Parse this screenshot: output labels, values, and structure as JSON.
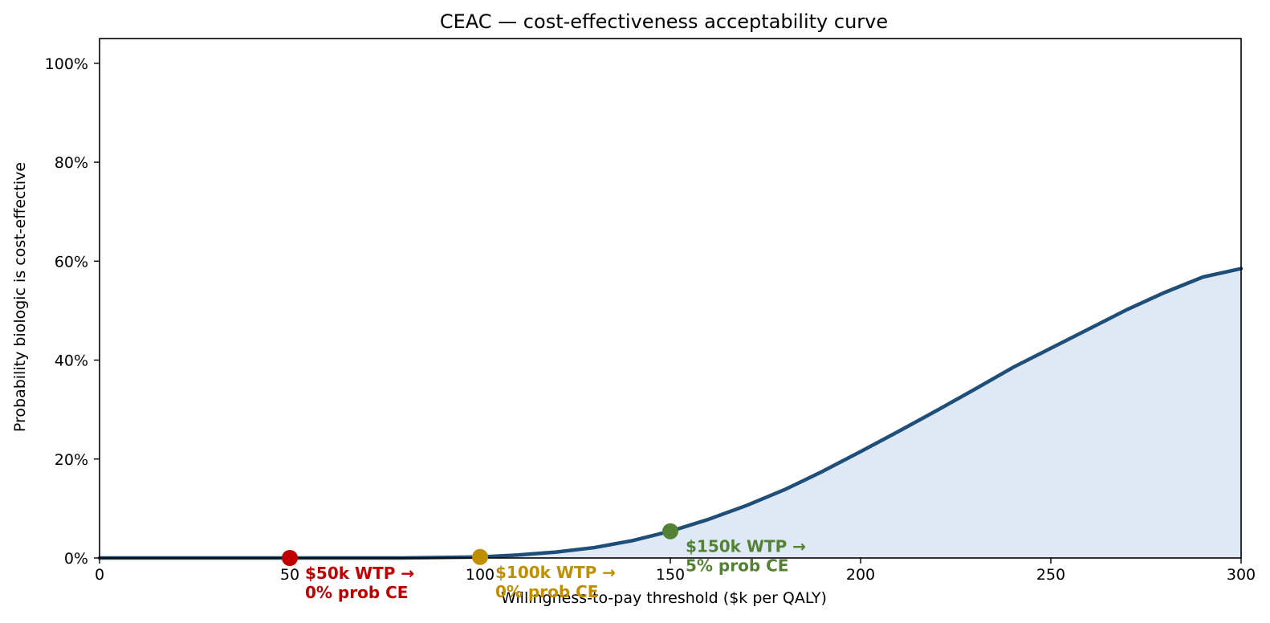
{
  "chart_data": {
    "type": "area",
    "title": "CEAC — cost-effectiveness acceptability curve",
    "xlabel": "Willingness-to-pay threshold  ($k per QALY)",
    "ylabel": "Probability biologic is cost-effective",
    "xlim": [
      0,
      300
    ],
    "ylim": [
      0,
      1.05
    ],
    "xticks": [
      0,
      50,
      100,
      150,
      200,
      250,
      300
    ],
    "yticks": [
      0,
      0.2,
      0.4,
      0.6,
      0.8,
      1.0
    ],
    "xtick_labels": [
      "0",
      "50",
      "100",
      "150",
      "200",
      "250",
      "300"
    ],
    "ytick_labels": [
      "0%",
      "20%",
      "40%",
      "60%",
      "80%",
      "100%"
    ],
    "grid": false,
    "legend": "none",
    "colors": {
      "line": "#1f4e79",
      "fill": "#dfe9f5",
      "marker_50": "#c00000",
      "marker_100": "#bf8f00",
      "marker_150": "#548235"
    },
    "series": [
      {
        "x": [
          0,
          10,
          20,
          30,
          40,
          50,
          60,
          70,
          80,
          90,
          100,
          110,
          120,
          130,
          140,
          150,
          160,
          170,
          180,
          190,
          200,
          210,
          220,
          230,
          240,
          250,
          260,
          270,
          280,
          290,
          300
        ],
        "y": [
          0,
          0,
          0,
          0,
          0,
          0,
          0,
          0,
          0,
          0.001,
          0.002,
          0.006,
          0.012,
          0.021,
          0.035,
          0.054,
          0.078,
          0.106,
          0.138,
          0.175,
          0.215,
          0.256,
          0.298,
          0.341,
          0.385,
          0.424,
          0.463,
          0.502,
          0.537,
          0.568,
          0.585
        ]
      }
    ],
    "markers": [
      {
        "x": 50,
        "y": 0.0,
        "color": "#c00000",
        "label_line1": "$50k WTP →",
        "label_line2": "0% prob CE"
      },
      {
        "x": 100,
        "y": 0.002,
        "color": "#bf8f00",
        "label_line1": "$100k WTP →",
        "label_line2": "0% prob CE"
      },
      {
        "x": 150,
        "y": 0.054,
        "color": "#548235",
        "label_line1": "$150k WTP →",
        "label_line2": "5% prob CE"
      }
    ]
  }
}
